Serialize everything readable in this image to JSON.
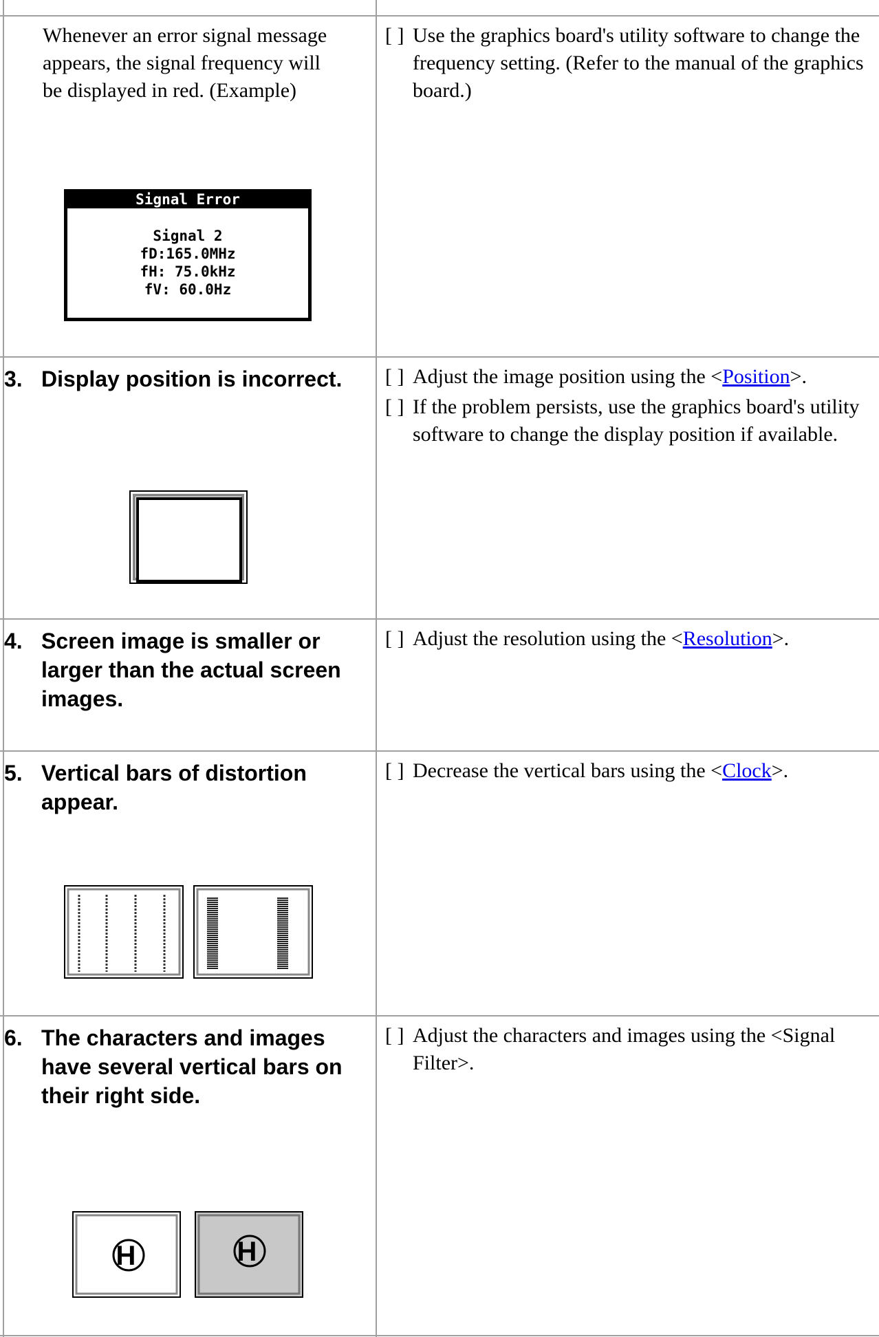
{
  "rows": [
    {
      "description": "Whenever an error signal message appears, the signal frequency will be displayed in red. (Example)",
      "solutions": [
        {
          "marker": "[ ]",
          "before": "Use the graphics board's utility software to change the frequency setting. (Refer to the manual of the graphics board.)"
        }
      ]
    },
    {
      "number": "3.",
      "heading": "Display position is incorrect.",
      "solutions": [
        {
          "marker": "[ ]",
          "before": "Adjust the image position using the <",
          "link": "Position",
          "after": ">."
        },
        {
          "marker": "[ ]",
          "before": "If the problem persists, use the graphics board's utility software to change the display position if available."
        }
      ]
    },
    {
      "number": "4.",
      "heading": "Screen image is smaller or larger than the actual screen images.",
      "solutions": [
        {
          "marker": "[ ]",
          "before": "Adjust the resolution using the <",
          "link": "Resolution",
          "after": ">."
        }
      ]
    },
    {
      "number": "5.",
      "heading": "Vertical bars of distortion appear.",
      "solutions": [
        {
          "marker": "[ ]",
          "before": "Decrease the vertical bars using the <",
          "link": "Clock",
          "after": ">."
        }
      ]
    },
    {
      "number": "6.",
      "heading": "The characters and images have several vertical bars on their right side.",
      "solutions": [
        {
          "marker": "[ ]",
          "before": "Adjust the characters and images using the <Signal Filter>."
        }
      ]
    }
  ],
  "signal_error": {
    "title": "Signal Error",
    "lines": [
      "Signal 2",
      "fD:165.0MHz",
      "fH: 75.0kHz",
      "fV: 60.0Hz"
    ]
  }
}
